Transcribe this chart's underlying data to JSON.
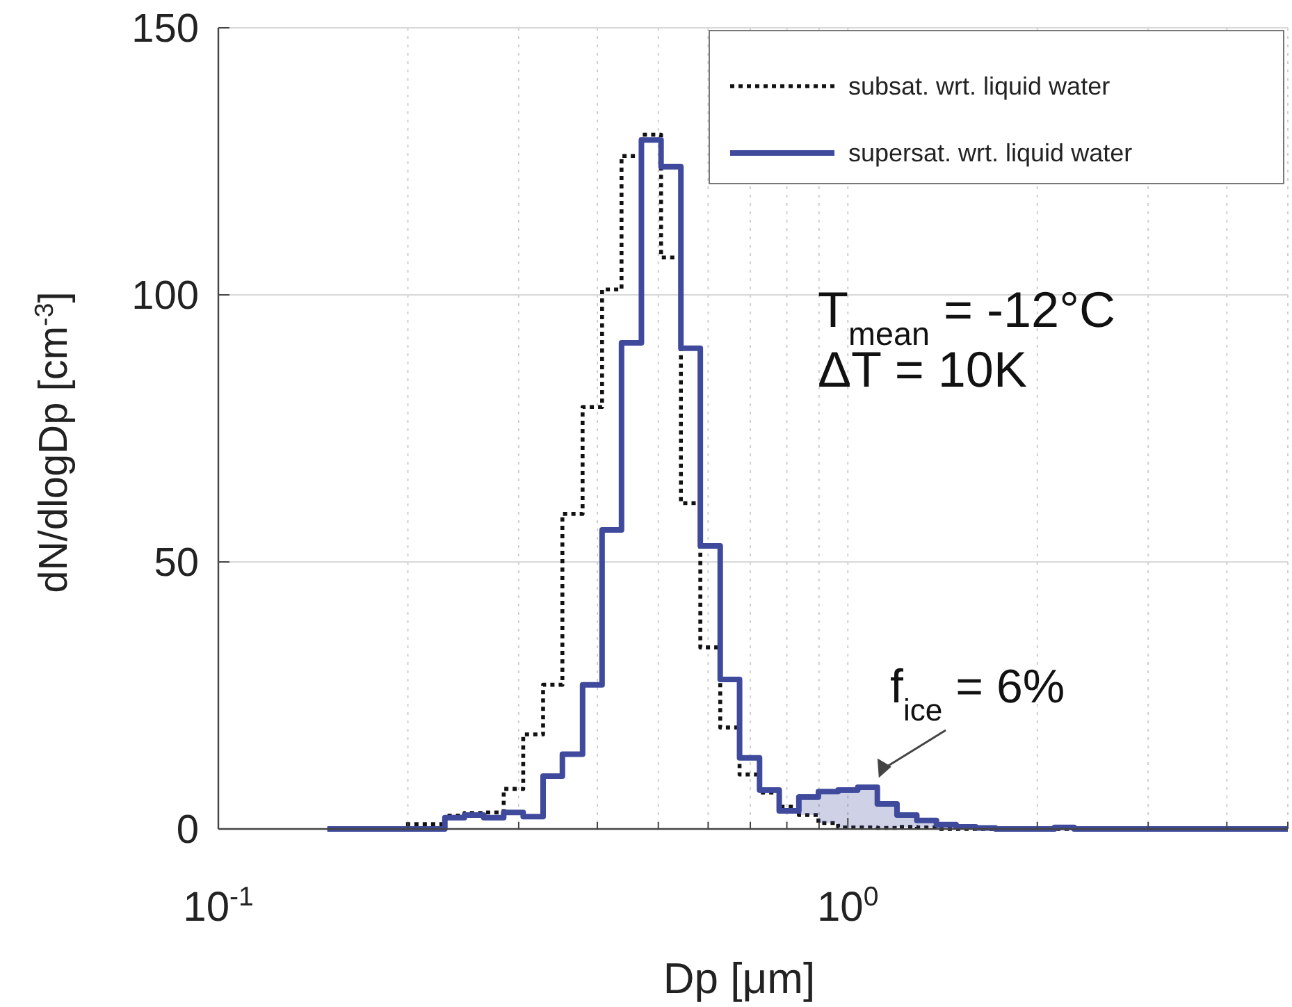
{
  "chart_data": {
    "type": "step",
    "xlabel": "Dp [μm]",
    "ylabel": "dN/dlogDp [cm$^{-3}$]",
    "log": "x",
    "grid": true,
    "legend": "top right",
    "xlim": [
      0.1,
      5
    ],
    "ylim": [
      0,
      150
    ],
    "xticks": [
      {
        "value": 0.1,
        "label": "10$^{-1}$"
      },
      {
        "value": 0.2,
        "label": null
      },
      {
        "value": 0.3,
        "label": null
      },
      {
        "value": 0.4,
        "label": null
      },
      {
        "value": 0.5,
        "label": null
      },
      {
        "value": 0.6,
        "label": null
      },
      {
        "value": 0.7,
        "label": null
      },
      {
        "value": 0.8,
        "label": null
      },
      {
        "value": 0.9,
        "label": null
      },
      {
        "value": 1,
        "label": "10$^{0}$"
      },
      {
        "value": 2,
        "label": null
      },
      {
        "value": 3,
        "label": null
      },
      {
        "value": 4,
        "label": null
      },
      {
        "value": 5,
        "label": null
      }
    ],
    "yticks": [
      0,
      50,
      100,
      150
    ],
    "x": [
      0.149,
      0.16,
      0.172,
      0.184,
      0.198,
      0.213,
      0.229,
      0.246,
      0.264,
      0.284,
      0.305,
      0.328,
      0.352,
      0.379,
      0.407,
      0.437,
      0.47,
      0.505,
      0.543,
      0.583,
      0.627,
      0.673,
      0.724,
      0.778,
      0.836,
      0.898,
      0.965,
      1.037,
      1.114,
      1.197,
      1.287,
      1.383,
      1.486,
      1.597,
      1.716,
      1.844,
      1.982,
      2.13,
      2.288,
      2.459,
      2.642,
      2.84,
      3.051,
      3.279,
      3.524,
      3.787,
      4.07,
      4.373,
      4.699,
      5
    ],
    "series": [
      {
        "name": "subsat. wrt. liquid water",
        "color": "#111111",
        "line_style": "dotted",
        "values": [
          0,
          0,
          0,
          0,
          0.9,
          0.9,
          2.5,
          3.0,
          3.1,
          7.5,
          17.7,
          27,
          59,
          79,
          101,
          126,
          130,
          107,
          61,
          34,
          19,
          10.2,
          6.8,
          4.2,
          2.6,
          1.1,
          0.3,
          0.3,
          0.2,
          0.4,
          0.3,
          0,
          0,
          0,
          0,
          0,
          0,
          0,
          0,
          0,
          0,
          0,
          0,
          0,
          0,
          0,
          0,
          0,
          0,
          0
        ]
      },
      {
        "name": "supersat. wrt. liquid water",
        "color": "#3f4a9c",
        "line_style": "solid",
        "values": [
          0,
          0,
          0,
          0,
          0,
          0,
          2.1,
          2.6,
          2.1,
          3.1,
          2.3,
          9.9,
          14,
          27,
          56,
          91,
          129,
          124,
          90,
          53,
          28,
          13.3,
          7.3,
          3.4,
          6.0,
          7.0,
          7.3,
          7.8,
          4.7,
          2.6,
          1.6,
          0.8,
          0.4,
          0.2,
          0,
          0,
          0,
          0.3,
          0,
          0,
          0,
          0,
          0,
          0,
          0,
          0,
          0,
          0,
          0,
          0
        ],
        "lower": [
          null,
          null,
          null,
          null,
          null,
          null,
          null,
          null,
          null,
          null,
          null,
          null,
          null,
          null,
          null,
          null,
          null,
          null,
          null,
          null,
          null,
          null,
          null,
          null,
          2.6,
          1.1,
          0.3,
          0.3,
          0.2,
          0.4,
          0.3,
          0,
          0,
          0,
          null,
          null,
          null,
          null,
          null,
          null,
          null,
          null,
          null,
          null,
          null,
          null,
          null,
          null,
          null,
          null
        ],
        "upper": [
          null,
          null,
          null,
          null,
          null,
          null,
          null,
          null,
          null,
          null,
          null,
          null,
          null,
          null,
          null,
          null,
          null,
          null,
          null,
          null,
          null,
          null,
          null,
          null,
          6.0,
          7.0,
          7.3,
          7.8,
          4.7,
          2.6,
          1.6,
          0.8,
          0.4,
          0.2,
          null,
          null,
          null,
          null,
          null,
          null,
          null,
          null,
          null,
          null,
          null,
          null,
          null,
          null,
          null,
          null
        ]
      }
    ],
    "annotations": [
      "T$_{mean}$ =  -12°C",
      "ΔT = 10K",
      {
        "text": "f$_{ice}$ = 6%",
        "x": 1.12,
        "y": 8.8
      }
    ]
  }
}
